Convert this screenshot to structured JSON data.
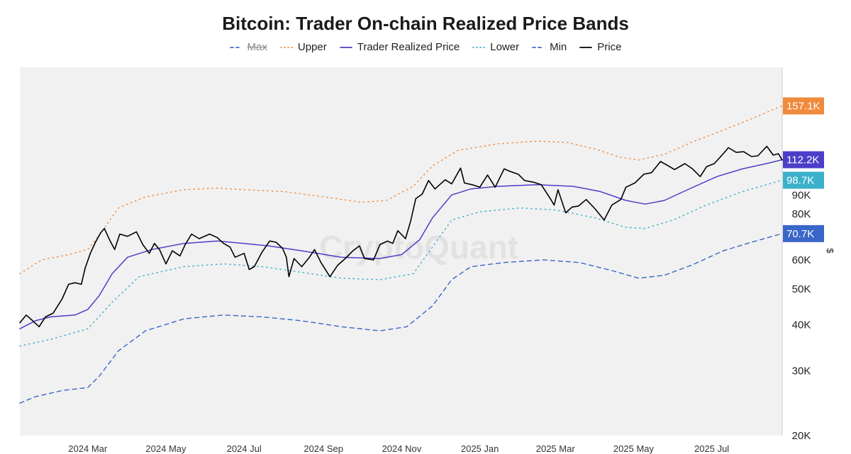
{
  "chart_data": {
    "type": "line",
    "title": "Bitcoin: Trader On-chain Realized Price Bands",
    "yscale": "log",
    "ylim": [
      20000,
      200000
    ],
    "y_unit_label": "$",
    "y_ticks": [
      {
        "value": 20000,
        "label": "20K"
      },
      {
        "value": 30000,
        "label": "30K"
      },
      {
        "value": 40000,
        "label": "40K"
      },
      {
        "value": 50000,
        "label": "50K"
      },
      {
        "value": 60000,
        "label": "60K"
      },
      {
        "value": 80000,
        "label": "80K"
      },
      {
        "value": 90000,
        "label": "90K"
      }
    ],
    "x_ticks": [
      {
        "x": "2024-03-01",
        "label": "2024 Mar"
      },
      {
        "x": "2024-05-01",
        "label": "2024 May"
      },
      {
        "x": "2024-07-01",
        "label": "2024 Jul"
      },
      {
        "x": "2024-09-01",
        "label": "2024 Sep"
      },
      {
        "x": "2024-11-01",
        "label": "2024 Nov"
      },
      {
        "x": "2025-01-01",
        "label": "2025 Jan"
      },
      {
        "x": "2025-03-01",
        "label": "2025 Mar"
      },
      {
        "x": "2025-05-01",
        "label": "2025 May"
      },
      {
        "x": "2025-07-01",
        "label": "2025 Jul"
      }
    ],
    "xlim": [
      "2024-01-08",
      "2025-08-25"
    ],
    "watermark": "CryptoQuant",
    "legend": [
      {
        "name": "Max",
        "color": "#4a6fcf",
        "style": "dashed",
        "hidden": true
      },
      {
        "name": "Upper",
        "color": "#f08a3c",
        "style": "dotted"
      },
      {
        "name": "Trader Realized Price",
        "color": "#4b3fc8",
        "style": "solid"
      },
      {
        "name": "Lower",
        "color": "#3bb0c9",
        "style": "dotted"
      },
      {
        "name": "Min",
        "color": "#3a66c8",
        "style": "dashed"
      },
      {
        "name": "Price",
        "color": "#000000",
        "style": "solid"
      }
    ],
    "series": [
      {
        "name": "Upper",
        "color": "#f08a3c",
        "last_label": "157.1K",
        "points": [
          [
            "2024-01-08",
            55000
          ],
          [
            "2024-01-25",
            60000
          ],
          [
            "2024-02-15",
            62000
          ],
          [
            "2024-03-01",
            64000
          ],
          [
            "2024-03-10",
            70000
          ],
          [
            "2024-03-25",
            83000
          ],
          [
            "2024-04-15",
            89000
          ],
          [
            "2024-05-15",
            93000
          ],
          [
            "2024-06-10",
            94000
          ],
          [
            "2024-07-01",
            93000
          ],
          [
            "2024-08-01",
            92000
          ],
          [
            "2024-09-01",
            89000
          ],
          [
            "2024-10-01",
            86000
          ],
          [
            "2024-10-20",
            87000
          ],
          [
            "2024-11-10",
            95000
          ],
          [
            "2024-11-25",
            108000
          ],
          [
            "2024-12-15",
            119000
          ],
          [
            "2025-01-15",
            124000
          ],
          [
            "2025-02-15",
            126000
          ],
          [
            "2025-03-10",
            125000
          ],
          [
            "2025-04-01",
            120000
          ],
          [
            "2025-04-20",
            114000
          ],
          [
            "2025-05-05",
            112000
          ],
          [
            "2025-05-25",
            116000
          ],
          [
            "2025-06-15",
            125000
          ],
          [
            "2025-07-10",
            135000
          ],
          [
            "2025-08-01",
            145000
          ],
          [
            "2025-08-25",
            157100
          ]
        ]
      },
      {
        "name": "Trader Realized Price",
        "color": "#4b3fc8",
        "last_label": "112.2K",
        "points": [
          [
            "2024-01-08",
            39000
          ],
          [
            "2024-01-20",
            41000
          ],
          [
            "2024-02-01",
            42000
          ],
          [
            "2024-02-20",
            42500
          ],
          [
            "2024-03-01",
            44000
          ],
          [
            "2024-03-10",
            48000
          ],
          [
            "2024-03-20",
            55000
          ],
          [
            "2024-04-01",
            61000
          ],
          [
            "2024-04-20",
            64000
          ],
          [
            "2024-05-15",
            66500
          ],
          [
            "2024-06-10",
            67500
          ],
          [
            "2024-07-01",
            66500
          ],
          [
            "2024-07-20",
            65500
          ],
          [
            "2024-08-15",
            63500
          ],
          [
            "2024-09-15",
            61000
          ],
          [
            "2024-10-15",
            60500
          ],
          [
            "2024-11-01",
            62000
          ],
          [
            "2024-11-15",
            68000
          ],
          [
            "2024-11-25",
            78000
          ],
          [
            "2024-12-10",
            90000
          ],
          [
            "2024-12-25",
            93500
          ],
          [
            "2025-01-15",
            95000
          ],
          [
            "2025-02-15",
            96000
          ],
          [
            "2025-03-15",
            95000
          ],
          [
            "2025-04-05",
            92000
          ],
          [
            "2025-04-25",
            87000
          ],
          [
            "2025-05-10",
            85000
          ],
          [
            "2025-05-25",
            87000
          ],
          [
            "2025-06-15",
            94000
          ],
          [
            "2025-07-05",
            101000
          ],
          [
            "2025-07-25",
            106000
          ],
          [
            "2025-08-15",
            110000
          ],
          [
            "2025-08-25",
            112200
          ]
        ]
      },
      {
        "name": "Lower",
        "color": "#3bb0c9",
        "last_label": "98.7K",
        "points": [
          [
            "2024-01-08",
            35000
          ],
          [
            "2024-02-01",
            36500
          ],
          [
            "2024-03-01",
            39000
          ],
          [
            "2024-03-20",
            46000
          ],
          [
            "2024-04-10",
            54000
          ],
          [
            "2024-05-15",
            57500
          ],
          [
            "2024-06-15",
            58500
          ],
          [
            "2024-07-15",
            57500
          ],
          [
            "2024-08-15",
            55500
          ],
          [
            "2024-09-15",
            53500
          ],
          [
            "2024-10-15",
            53000
          ],
          [
            "2024-11-10",
            55000
          ],
          [
            "2024-11-25",
            65000
          ],
          [
            "2024-12-10",
            77000
          ],
          [
            "2025-01-01",
            81000
          ],
          [
            "2025-02-01",
            83000
          ],
          [
            "2025-03-01",
            82000
          ],
          [
            "2025-04-01",
            78000
          ],
          [
            "2025-04-25",
            73500
          ],
          [
            "2025-05-10",
            73000
          ],
          [
            "2025-06-01",
            77000
          ],
          [
            "2025-06-25",
            84000
          ],
          [
            "2025-07-25",
            92000
          ],
          [
            "2025-08-25",
            98700
          ]
        ]
      },
      {
        "name": "Min",
        "color": "#3a66c8",
        "last_label": "70.7K",
        "points": [
          [
            "2024-01-08",
            24500
          ],
          [
            "2024-01-20",
            25500
          ],
          [
            "2024-02-10",
            26500
          ],
          [
            "2024-03-01",
            27000
          ],
          [
            "2024-03-10",
            29000
          ],
          [
            "2024-03-25",
            34000
          ],
          [
            "2024-04-15",
            38500
          ],
          [
            "2024-05-15",
            41500
          ],
          [
            "2024-06-15",
            42500
          ],
          [
            "2024-07-15",
            42000
          ],
          [
            "2024-08-15",
            41000
          ],
          [
            "2024-09-15",
            39500
          ],
          [
            "2024-10-15",
            38500
          ],
          [
            "2024-11-05",
            39500
          ],
          [
            "2024-11-25",
            45000
          ],
          [
            "2024-12-10",
            53000
          ],
          [
            "2024-12-25",
            57500
          ],
          [
            "2025-01-20",
            59000
          ],
          [
            "2025-02-20",
            60000
          ],
          [
            "2025-03-20",
            59000
          ],
          [
            "2025-04-15",
            56000
          ],
          [
            "2025-05-05",
            53500
          ],
          [
            "2025-05-25",
            54500
          ],
          [
            "2025-06-15",
            58000
          ],
          [
            "2025-07-10",
            63500
          ],
          [
            "2025-08-01",
            67000
          ],
          [
            "2025-08-25",
            70700
          ]
        ]
      },
      {
        "name": "Price",
        "color": "#000000",
        "points": [
          [
            "2024-01-08",
            40500
          ],
          [
            "2024-01-13",
            42500
          ],
          [
            "2024-01-18",
            41000
          ],
          [
            "2024-01-23",
            39500
          ],
          [
            "2024-01-28",
            42000
          ],
          [
            "2024-02-03",
            43000
          ],
          [
            "2024-02-10",
            47000
          ],
          [
            "2024-02-15",
            51500
          ],
          [
            "2024-02-20",
            52000
          ],
          [
            "2024-02-25",
            51500
          ],
          [
            "2024-02-28",
            57000
          ],
          [
            "2024-03-03",
            62500
          ],
          [
            "2024-03-07",
            67000
          ],
          [
            "2024-03-11",
            71000
          ],
          [
            "2024-03-14",
            73000
          ],
          [
            "2024-03-18",
            68000
          ],
          [
            "2024-03-22",
            64000
          ],
          [
            "2024-03-26",
            70500
          ],
          [
            "2024-04-01",
            69500
          ],
          [
            "2024-04-08",
            71500
          ],
          [
            "2024-04-13",
            66000
          ],
          [
            "2024-04-18",
            62500
          ],
          [
            "2024-04-22",
            66500
          ],
          [
            "2024-04-26",
            64000
          ],
          [
            "2024-05-01",
            58500
          ],
          [
            "2024-05-06",
            63500
          ],
          [
            "2024-05-12",
            61500
          ],
          [
            "2024-05-16",
            66000
          ],
          [
            "2024-05-21",
            70500
          ],
          [
            "2024-05-27",
            68500
          ],
          [
            "2024-06-04",
            70500
          ],
          [
            "2024-06-10",
            69000
          ],
          [
            "2024-06-15",
            66500
          ],
          [
            "2024-06-20",
            65000
          ],
          [
            "2024-06-24",
            61000
          ],
          [
            "2024-07-01",
            62500
          ],
          [
            "2024-07-05",
            56500
          ],
          [
            "2024-07-09",
            57500
          ],
          [
            "2024-07-15",
            63000
          ],
          [
            "2024-07-21",
            67500
          ],
          [
            "2024-07-26",
            67000
          ],
          [
            "2024-07-31",
            64500
          ],
          [
            "2024-08-03",
            61000
          ],
          [
            "2024-08-05",
            54000
          ],
          [
            "2024-08-09",
            60500
          ],
          [
            "2024-08-15",
            57500
          ],
          [
            "2024-08-21",
            61000
          ],
          [
            "2024-08-25",
            64000
          ],
          [
            "2024-08-30",
            59000
          ],
          [
            "2024-09-06",
            54000
          ],
          [
            "2024-09-12",
            58000
          ],
          [
            "2024-09-18",
            60500
          ],
          [
            "2024-09-24",
            63500
          ],
          [
            "2024-09-29",
            65500
          ],
          [
            "2024-10-03",
            60500
          ],
          [
            "2024-10-10",
            60000
          ],
          [
            "2024-10-15",
            66000
          ],
          [
            "2024-10-21",
            67500
          ],
          [
            "2024-10-25",
            66500
          ],
          [
            "2024-10-29",
            72000
          ],
          [
            "2024-11-04",
            68500
          ],
          [
            "2024-11-08",
            76500
          ],
          [
            "2024-11-12",
            88000
          ],
          [
            "2024-11-17",
            90500
          ],
          [
            "2024-11-22",
            98500
          ],
          [
            "2024-11-27",
            93500
          ],
          [
            "2024-12-05",
            99000
          ],
          [
            "2024-12-10",
            96500
          ],
          [
            "2024-12-17",
            106500
          ],
          [
            "2024-12-20",
            97000
          ],
          [
            "2024-12-26",
            96000
          ],
          [
            "2025-01-01",
            94500
          ],
          [
            "2025-01-07",
            102000
          ],
          [
            "2025-01-13",
            94500
          ],
          [
            "2025-01-20",
            106000
          ],
          [
            "2025-01-24",
            104500
          ],
          [
            "2025-01-31",
            102500
          ],
          [
            "2025-02-05",
            98500
          ],
          [
            "2025-02-12",
            97500
          ],
          [
            "2025-02-18",
            96000
          ],
          [
            "2025-02-25",
            88000
          ],
          [
            "2025-02-28",
            84500
          ],
          [
            "2025-03-03",
            93000
          ],
          [
            "2025-03-09",
            80500
          ],
          [
            "2025-03-14",
            83500
          ],
          [
            "2025-03-19",
            84000
          ],
          [
            "2025-03-25",
            87500
          ],
          [
            "2025-04-01",
            82500
          ],
          [
            "2025-04-08",
            77000
          ],
          [
            "2025-04-14",
            84500
          ],
          [
            "2025-04-21",
            87500
          ],
          [
            "2025-04-25",
            94500
          ],
          [
            "2025-05-02",
            97000
          ],
          [
            "2025-05-09",
            102500
          ],
          [
            "2025-05-15",
            103500
          ],
          [
            "2025-05-22",
            111000
          ],
          [
            "2025-05-27",
            108500
          ],
          [
            "2025-06-02",
            105500
          ],
          [
            "2025-06-10",
            109500
          ],
          [
            "2025-06-16",
            106000
          ],
          [
            "2025-06-22",
            101000
          ],
          [
            "2025-06-27",
            107500
          ],
          [
            "2025-07-03",
            109500
          ],
          [
            "2025-07-10",
            116500
          ],
          [
            "2025-07-14",
            121000
          ],
          [
            "2025-07-20",
            117500
          ],
          [
            "2025-07-26",
            118000
          ],
          [
            "2025-08-01",
            114500
          ],
          [
            "2025-08-06",
            115000
          ],
          [
            "2025-08-13",
            122000
          ],
          [
            "2025-08-18",
            115500
          ],
          [
            "2025-08-22",
            116500
          ],
          [
            "2025-08-25",
            112000
          ]
        ]
      }
    ]
  }
}
